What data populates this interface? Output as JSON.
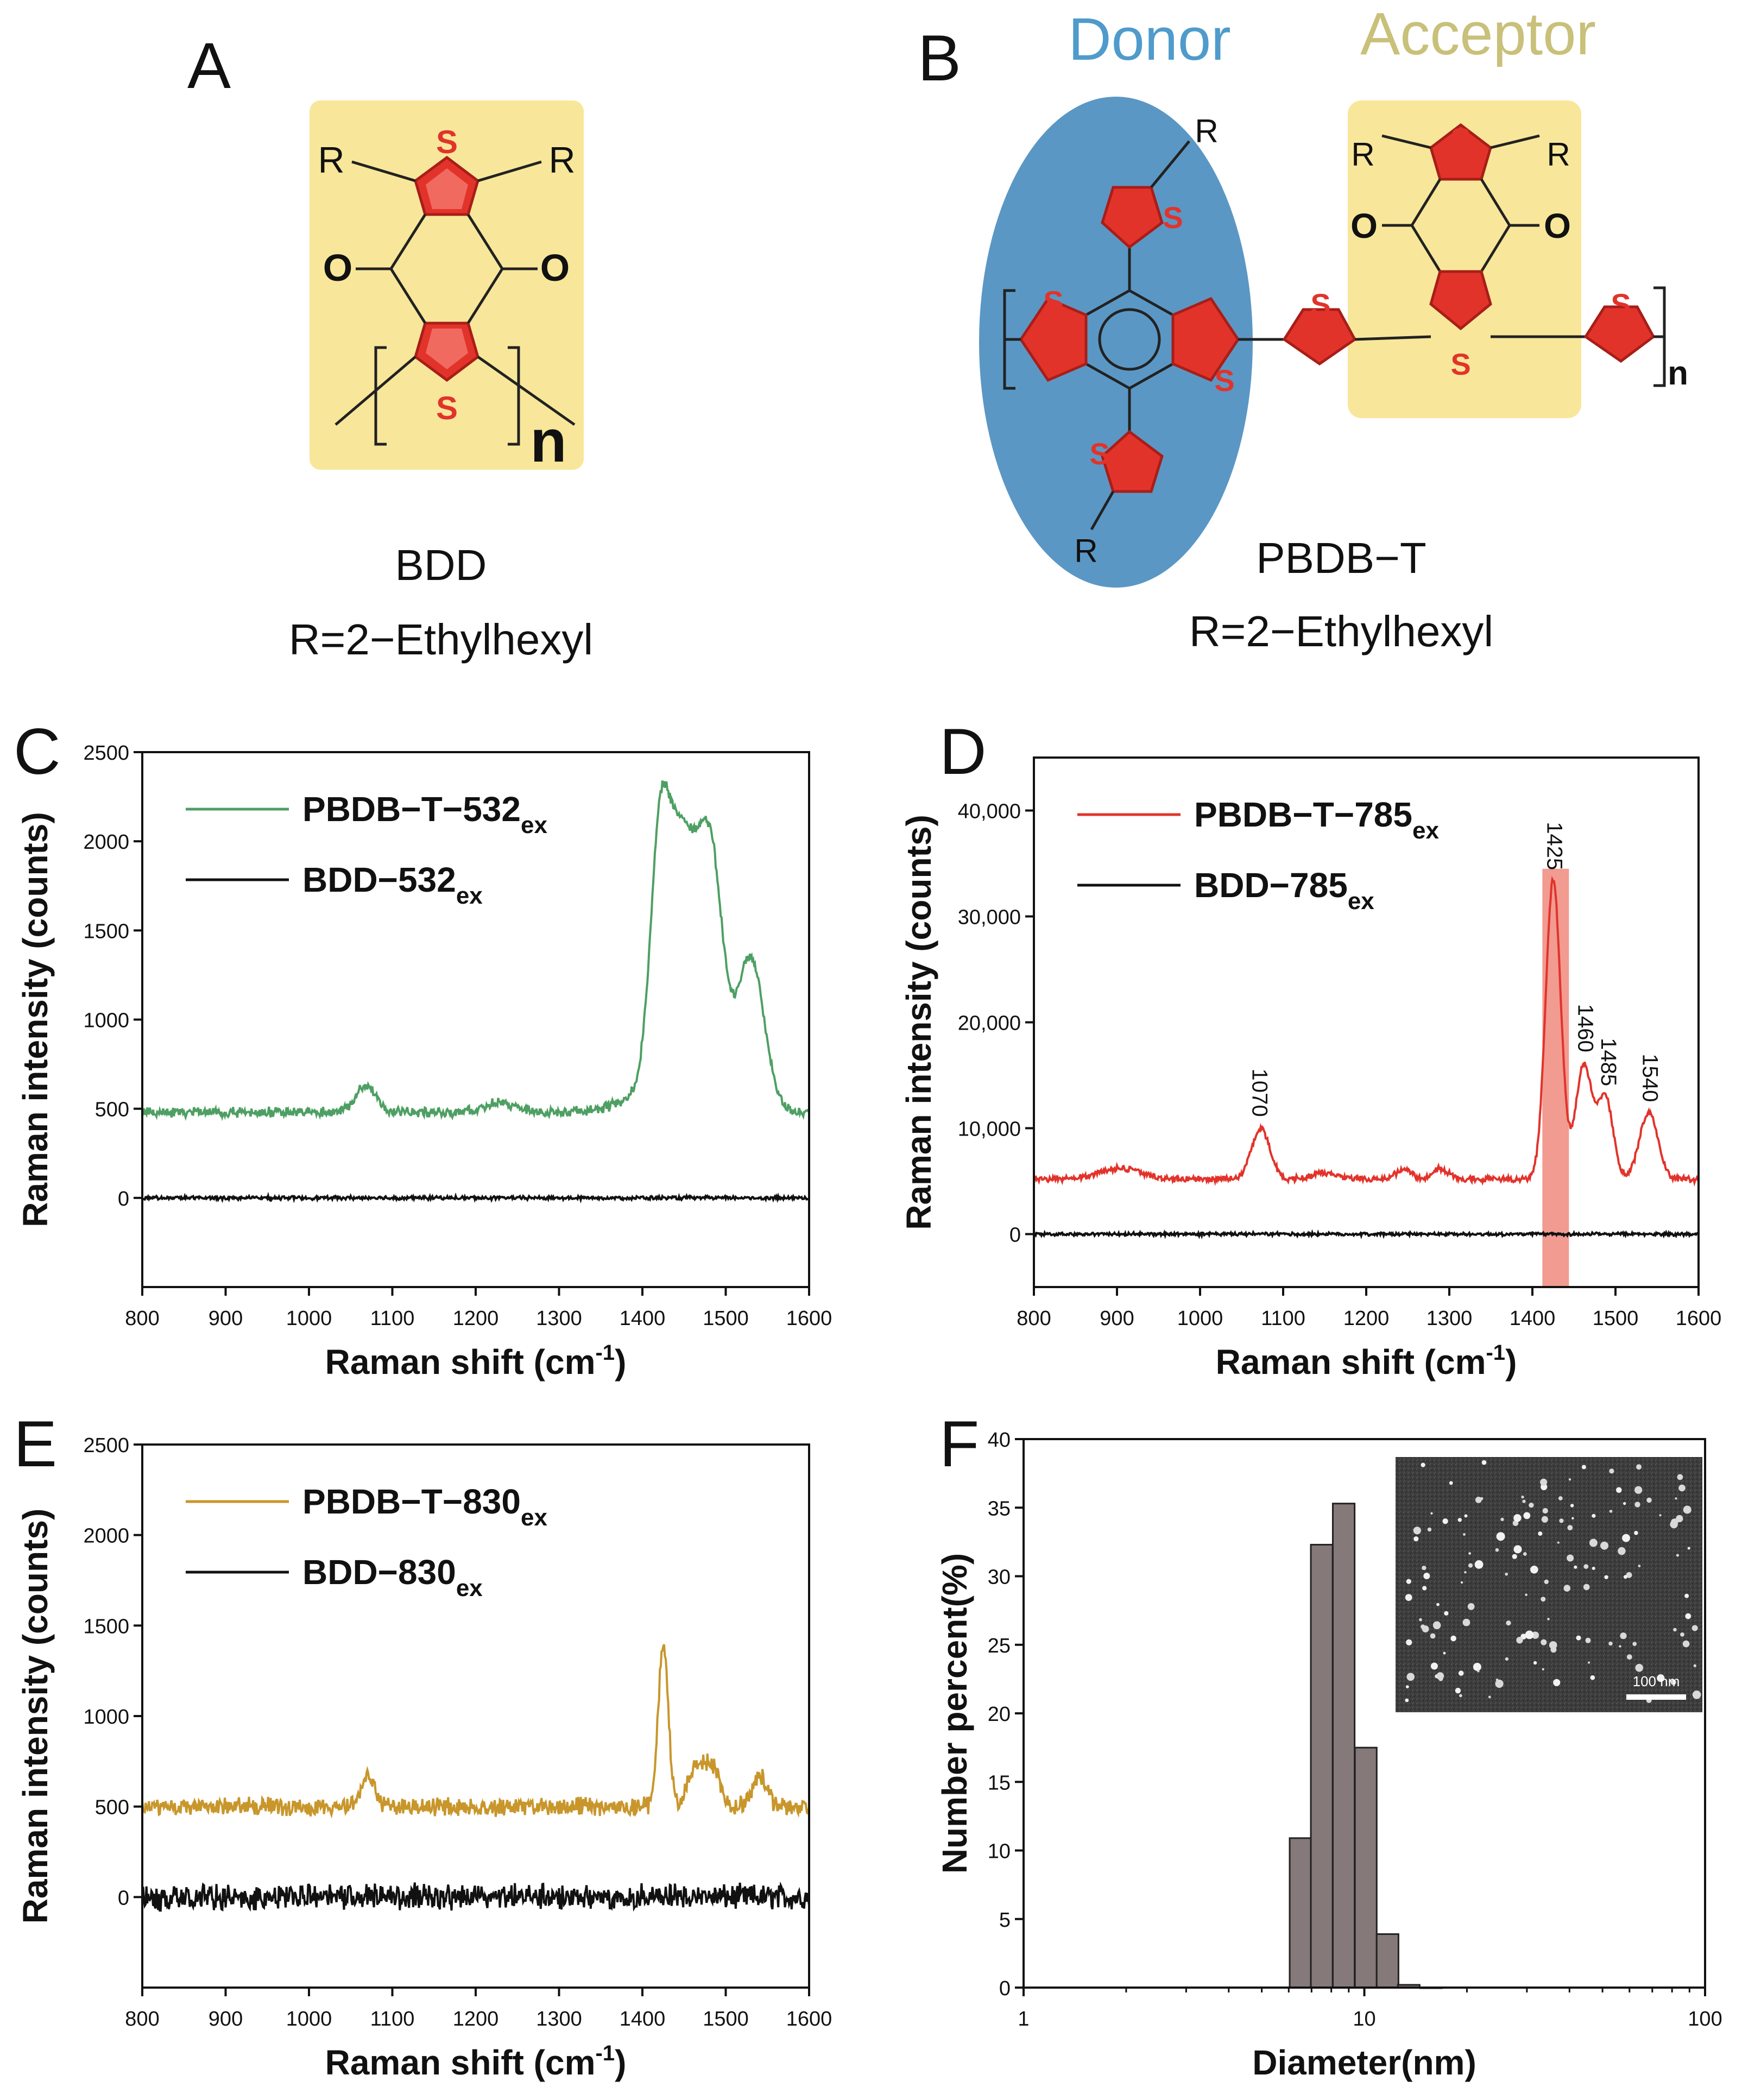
{
  "panels": {
    "A": {
      "letter": "A",
      "name": "BDD",
      "r_group": "R=2−Ethylhexyl",
      "atoms": {
        "s": "S",
        "o": "O",
        "r": "R",
        "n": "n"
      }
    },
    "B": {
      "letter": "B",
      "donor": "Donor",
      "acceptor": "Acceptor",
      "name": "PBDB−T",
      "r_group": "R=2−Ethylhexyl",
      "atoms": {
        "s": "S",
        "o": "O",
        "r": "R",
        "n": "n"
      }
    },
    "C": {
      "letter": "C"
    },
    "D": {
      "letter": "D"
    },
    "E": {
      "letter": "E"
    },
    "F": {
      "letter": "F",
      "scale_bar": "100 nm"
    }
  },
  "chart_data": [
    {
      "id": "C",
      "type": "line",
      "xlabel": "Raman shift (cm",
      "xlabel_sup": "-1",
      "xlabel_end": ")",
      "ylabel": "Raman intensity (counts)",
      "xlim": [
        800,
        1600
      ],
      "ylim": [
        -500,
        2500
      ],
      "xticks": [
        "800",
        "900",
        "1000",
        "1100",
        "1200",
        "1300",
        "1400",
        "1500",
        "1600"
      ],
      "yticks": [
        "0",
        "500",
        "1000",
        "1500",
        "2000",
        "2500"
      ],
      "legend_position": "top-left",
      "series": [
        {
          "name": "PBDB−T−532",
          "sub": "ex",
          "color": "#4e9f63",
          "baseline": 480,
          "noise": 22,
          "peaks": [
            [
              1068,
              150,
              12
            ],
            [
              1230,
              60,
              18
            ],
            [
              1422,
              1420,
              12
            ],
            [
              1445,
              850,
              12
            ],
            [
              1465,
              800,
              14
            ],
            [
              1485,
              960,
              13
            ],
            [
              1530,
              800,
              16
            ],
            [
              1455,
              300,
              45
            ]
          ]
        },
        {
          "name": "BDD−532",
          "sub": "ex",
          "color": "#111111",
          "baseline": 0,
          "noise": 8,
          "peaks": []
        }
      ]
    },
    {
      "id": "D",
      "type": "line",
      "xlabel": "Raman shift (cm",
      "xlabel_sup": "-1",
      "xlabel_end": ")",
      "ylabel": "Raman intensity (counts)",
      "xlim": [
        800,
        1600
      ],
      "ylim": [
        -5000,
        45000
      ],
      "xticks": [
        "800",
        "900",
        "1000",
        "1100",
        "1200",
        "1300",
        "1400",
        "1500",
        "1600"
      ],
      "yticks": [
        "0",
        "10,000",
        "20,000",
        "30,000",
        "40,000"
      ],
      "legend_position": "top-left",
      "highlight": {
        "x0": 1412,
        "x1": 1444,
        "y_top": 34500,
        "color": "#ee8a7e"
      },
      "peak_labels": [
        {
          "x": 1070,
          "y": 10300,
          "text": "1070"
        },
        {
          "x": 1425,
          "y": 33600,
          "text": "1425"
        },
        {
          "x": 1462,
          "y": 16400,
          "text": "1460"
        },
        {
          "x": 1490,
          "y": 13200,
          "text": "1485"
        },
        {
          "x": 1540,
          "y": 11700,
          "text": "1540"
        }
      ],
      "series": [
        {
          "name": "PBDB−T−785",
          "sub": "ex",
          "color": "#e2332b",
          "baseline": 5200,
          "noise": 230,
          "peaks": [
            [
              905,
              1000,
              25
            ],
            [
              1073,
              4700,
              11
            ],
            [
              1150,
              600,
              14
            ],
            [
              1245,
              900,
              10
            ],
            [
              1290,
              1000,
              10
            ],
            [
              1425,
              28300,
              9
            ],
            [
              1462,
              10800,
              10
            ],
            [
              1488,
              7700,
              9
            ],
            [
              1540,
              6300,
              11
            ]
          ]
        },
        {
          "name": "BDD−785",
          "sub": "ex",
          "color": "#111111",
          "baseline": 0,
          "noise": 120,
          "peaks": []
        }
      ]
    },
    {
      "id": "E",
      "type": "line",
      "xlabel": "Raman shift (cm",
      "xlabel_sup": "-1",
      "xlabel_end": ")",
      "ylabel": "Raman intensity (counts)",
      "xlim": [
        800,
        1600
      ],
      "ylim": [
        -500,
        2500
      ],
      "xticks": [
        "800",
        "900",
        "1000",
        "1100",
        "1200",
        "1300",
        "1400",
        "1500",
        "1600"
      ],
      "yticks": [
        "0",
        "500",
        "1000",
        "1500",
        "2000",
        "2500"
      ],
      "legend_position": "top-left",
      "series": [
        {
          "name": "PBDB−T−830",
          "sub": "ex",
          "color": "#c8962b",
          "baseline": 500,
          "noise": 40,
          "peaks": [
            [
              1070,
              170,
              8
            ],
            [
              1425,
              900,
              6
            ],
            [
              1465,
              230,
              10
            ],
            [
              1485,
              190,
              9
            ],
            [
              1540,
              170,
              9
            ]
          ]
        },
        {
          "name": "BDD−830",
          "sub": "ex",
          "color": "#111111",
          "baseline": 0,
          "noise": 55,
          "peaks": []
        }
      ]
    },
    {
      "id": "F",
      "type": "bar",
      "xscale": "log",
      "xlabel": "Diameter(nm)",
      "ylabel": "Number percent(%)",
      "xlim": [
        1,
        100
      ],
      "ylim": [
        0,
        40
      ],
      "xticks": [
        "1",
        "10",
        "100"
      ],
      "yticks": [
        "0",
        "5",
        "10",
        "15",
        "20",
        "25",
        "30",
        "35",
        "40"
      ],
      "bar_color": "#85797a",
      "categories": [
        6.5,
        7.5,
        8.7,
        10.1,
        11.7,
        13.5,
        15.7
      ],
      "values": [
        10.9,
        32.3,
        35.3,
        17.5,
        3.9,
        0.2,
        0.0
      ]
    }
  ]
}
